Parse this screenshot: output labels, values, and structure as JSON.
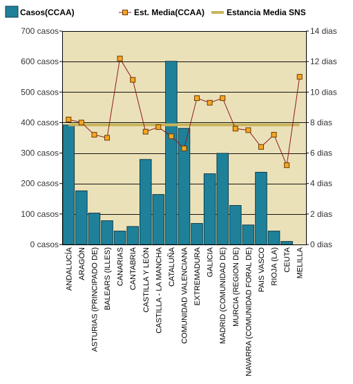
{
  "chart_data": {
    "type": "bar",
    "categories": [
      "ANDALUCÍA",
      "ARAGÓN",
      "ASTURIAS (PRINCIPADO DE)",
      "BALEARS (ILLES)",
      "CANARIAS",
      "CANTABRIA",
      "CASTILLA Y LEÓN",
      "CASTILLA - LA MANCHA",
      "CATALUÑA",
      "COMUNIDAD VALENCIANA",
      "EXTREMADURA",
      "GALICIA",
      "MADRID (COMUNIDAD DE)",
      "MURCIA (REGION DE)",
      "NAVARRA (COMUNIDAD FORAL DE)",
      "PAIS VASCO",
      "RIOJA (LA)",
      "CEUTA",
      "MELILLA"
    ],
    "series": [
      {
        "name": "Casos(CCAA)",
        "type": "bar",
        "axis": "left",
        "color": "#1f8199",
        "values": [
          392,
          176,
          103,
          78,
          44,
          59,
          279,
          164,
          601,
          381,
          69,
          232,
          299,
          128,
          64,
          237,
          44,
          10,
          0
        ]
      },
      {
        "name": "Est.  Media(CCAA)",
        "type": "line",
        "axis": "right",
        "color": "#8b1a1a",
        "marker_color": "#f5a623",
        "values": [
          8.2,
          8.0,
          7.2,
          7.0,
          12.2,
          10.8,
          7.4,
          7.7,
          7.1,
          6.3,
          9.6,
          9.3,
          9.6,
          7.6,
          7.5,
          6.4,
          7.2,
          5.2,
          11.0
        ]
      },
      {
        "name": "Estancia Media SNS",
        "type": "reference",
        "axis": "right",
        "color": "#c8b45a",
        "value": 7.85
      }
    ],
    "y_left": {
      "ylim": [
        0,
        700
      ],
      "ticks": [
        0,
        100,
        200,
        300,
        400,
        500,
        600,
        700
      ],
      "tick_labels": [
        "0 casos",
        "100 casos",
        "200 casos",
        "300 casos",
        "400 casos",
        "500 casos",
        "600 casos",
        "700 casos"
      ]
    },
    "y_right": {
      "ylim": [
        0,
        14
      ],
      "ticks": [
        0,
        2,
        4,
        6,
        8,
        10,
        12,
        14
      ],
      "tick_labels": [
        "0 dias",
        "2 dias",
        "4 dias",
        "6 dias",
        "8 dias",
        "10 dias",
        "12 dias",
        "14 dias"
      ]
    },
    "grid": true,
    "plot_background": "#ebe1b9",
    "legend_position": "top"
  }
}
